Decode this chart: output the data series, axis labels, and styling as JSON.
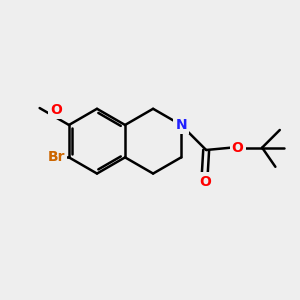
{
  "background_color": "#eeeeee",
  "bond_color": "#000000",
  "bond_width": 1.8,
  "atom_colors": {
    "N": "#2020ff",
    "O": "#ff0000",
    "Br": "#cc6600",
    "C": "#000000"
  },
  "font_size_atom": 10,
  "fig_w": 3.0,
  "fig_h": 3.0,
  "dpi": 100,
  "xlim": [
    0,
    10
  ],
  "ylim": [
    0,
    10
  ]
}
